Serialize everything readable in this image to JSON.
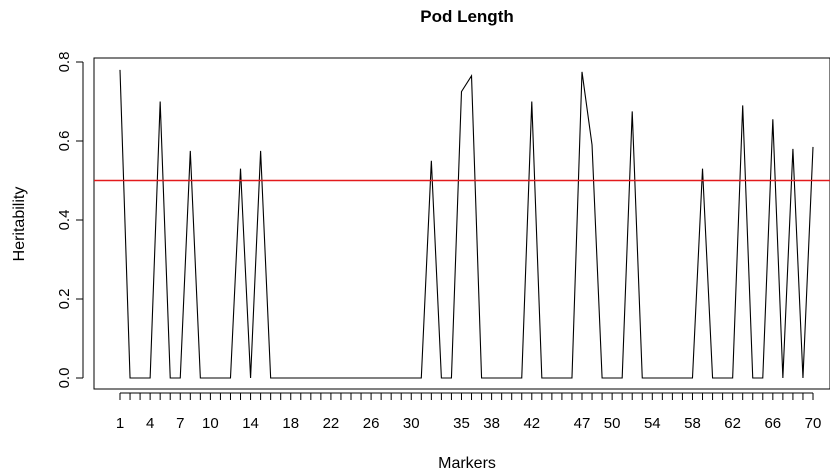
{
  "chart_data": {
    "type": "line",
    "title": "Pod Length",
    "xlabel": "Markers",
    "ylabel": "Heritability",
    "xlim": [
      1,
      70
    ],
    "ylim": [
      0,
      0.8
    ],
    "x_tick_labels": [
      1,
      4,
      7,
      10,
      14,
      18,
      22,
      26,
      30,
      35,
      38,
      42,
      47,
      50,
      54,
      58,
      62,
      66,
      70
    ],
    "y_ticks": [
      "0.0",
      "0.2",
      "0.4",
      "0.6",
      "0.8"
    ],
    "threshold": {
      "value": 0.5,
      "color": "#e31a1c"
    },
    "series": [
      {
        "color": "#000000",
        "x": [
          1,
          2,
          3,
          4,
          5,
          6,
          7,
          8,
          9,
          10,
          11,
          12,
          13,
          14,
          15,
          16,
          17,
          18,
          19,
          20,
          21,
          22,
          23,
          24,
          25,
          26,
          27,
          28,
          29,
          30,
          31,
          32,
          33,
          34,
          35,
          36,
          37,
          38,
          39,
          40,
          41,
          42,
          43,
          44,
          45,
          46,
          47,
          48,
          49,
          50,
          51,
          52,
          53,
          54,
          55,
          56,
          57,
          58,
          59,
          60,
          61,
          62,
          63,
          64,
          65,
          66,
          67,
          68,
          69,
          70
        ],
        "y": [
          0.78,
          0,
          0,
          0,
          0.7,
          0,
          0,
          0.575,
          0,
          0,
          0,
          0,
          0.53,
          0,
          0.575,
          0,
          0,
          0,
          0,
          0,
          0,
          0,
          0,
          0,
          0,
          0,
          0,
          0,
          0,
          0,
          0,
          0.55,
          0,
          0,
          0.725,
          0.765,
          0,
          0,
          0,
          0,
          0,
          0.7,
          0,
          0,
          0,
          0,
          0.775,
          0.59,
          0,
          0,
          0,
          0.675,
          0,
          0,
          0,
          0,
          0,
          0,
          0.53,
          0,
          0,
          0,
          0.69,
          0,
          0,
          0.655,
          0,
          0.58,
          0,
          0.585
        ]
      }
    ]
  }
}
